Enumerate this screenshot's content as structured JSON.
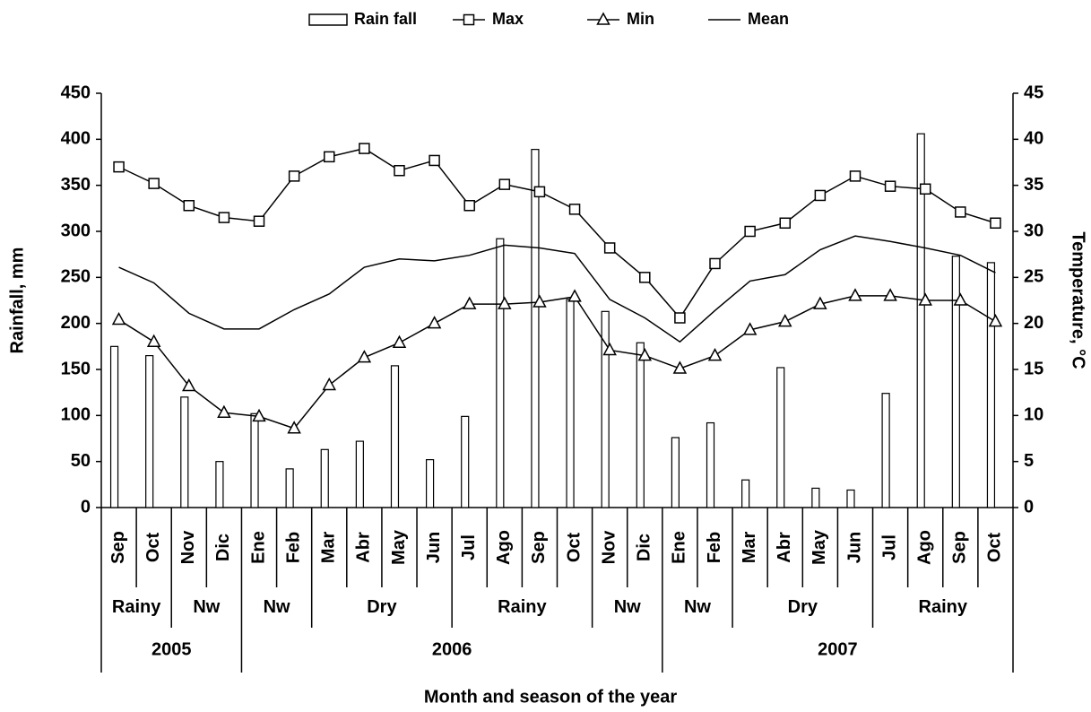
{
  "chart_data": {
    "type": "combo",
    "x_label": "Month and season of the year",
    "y_label": "Rainfall, mm",
    "y2_label": "Temperature, °C",
    "categories": [
      "Sep",
      "Oct",
      "Nov",
      "Dic",
      "Ene",
      "Feb",
      "Mar",
      "Abr",
      "May",
      "Jun",
      "Jul",
      "Ago",
      "Sep",
      "Oct",
      "Nov",
      "Dic",
      "Ene",
      "Feb",
      "Mar",
      "Abr",
      "May",
      "Jun",
      "Jul",
      "Ago",
      "Sep",
      "Oct"
    ],
    "seasons": [
      "Rainy",
      null,
      "Nw",
      null,
      "Nw",
      null,
      "Dry",
      null,
      null,
      null,
      "Rainy",
      null,
      null,
      null,
      "Nw",
      null,
      "Nw",
      null,
      "Dry",
      null,
      null,
      null,
      "Rainy",
      null,
      null,
      null
    ],
    "years": [
      "2005",
      null,
      null,
      null,
      "2006",
      null,
      null,
      null,
      null,
      null,
      null,
      null,
      null,
      null,
      null,
      null,
      "2007",
      null,
      null,
      null,
      null,
      null,
      null,
      null,
      null,
      null
    ],
    "ylim": [
      0,
      450
    ],
    "yticks": [
      0,
      50,
      100,
      150,
      200,
      250,
      300,
      350,
      400,
      450
    ],
    "y2lim": [
      0,
      45
    ],
    "y2ticks": [
      0,
      5,
      10,
      15,
      20,
      25,
      30,
      35,
      40,
      45
    ],
    "legend": "top",
    "series": [
      {
        "name": "Rain fall",
        "type": "bar",
        "color": "#ffffff",
        "stroke": "#000000",
        "values": [
          175,
          165,
          120,
          50,
          102,
          42,
          63,
          72,
          154,
          52,
          99,
          292,
          389,
          226,
          213,
          179,
          76,
          92,
          30,
          152,
          21,
          19,
          124,
          406,
          273,
          266
        ]
      },
      {
        "name": "Max",
        "type": "line",
        "axis": "y2",
        "marker": "square",
        "color": "#000000",
        "values": [
          37,
          35.2,
          32.8,
          31.5,
          31.1,
          36,
          38.1,
          39,
          36.6,
          37.7,
          32.8,
          35.1,
          34.3,
          32.4,
          28.2,
          25,
          20.6,
          26.5,
          30,
          30.9,
          33.9,
          36,
          34.9,
          34.6,
          32.1,
          30.9
        ]
      },
      {
        "name": "Min",
        "type": "line",
        "axis": "y2",
        "marker": "triangle",
        "color": "#000000",
        "values": [
          20.4,
          18,
          13.2,
          10.3,
          9.9,
          8.6,
          13.3,
          16.3,
          17.9,
          20,
          22.1,
          22.1,
          22.3,
          22.9,
          17.1,
          16.5,
          15.1,
          16.5,
          19.3,
          20.2,
          22.1,
          23,
          23,
          22.5,
          22.5,
          20.2
        ]
      },
      {
        "name": "Mean",
        "type": "line",
        "axis": "y2",
        "marker": "none",
        "color": "#000000",
        "values": [
          26.1,
          24.4,
          21.1,
          19.4,
          19.4,
          21.5,
          23.2,
          26.1,
          27,
          26.8,
          27.4,
          28.5,
          28.2,
          27.6,
          22.6,
          20.6,
          18,
          21.4,
          24.6,
          25.3,
          28,
          29.5,
          28.9,
          28.2,
          27.4,
          25.5
        ]
      }
    ]
  }
}
